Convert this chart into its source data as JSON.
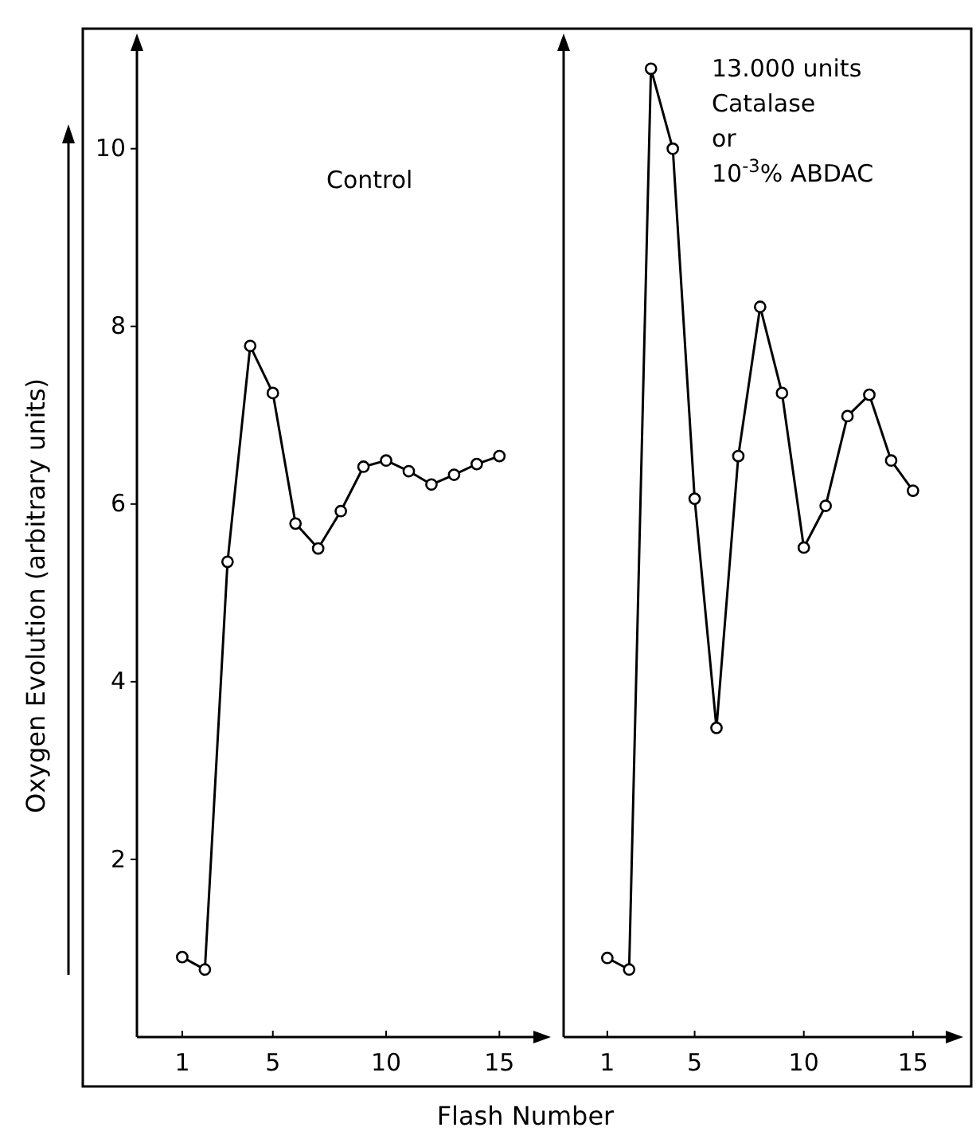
{
  "chart_data": [
    {
      "type": "line",
      "xlabel": "Flash Number",
      "ylabel": "Oxygen Evolution (arbitrary units)",
      "annotations": [
        "Control"
      ],
      "x": [
        1,
        2,
        3,
        4,
        5,
        6,
        7,
        8,
        9,
        10,
        11,
        12,
        13,
        14,
        15
      ],
      "series": [
        {
          "color": "#000000",
          "values": [
            0.9,
            0.76,
            5.35,
            7.78,
            7.25,
            5.78,
            5.5,
            5.92,
            6.42,
            6.49,
            6.37,
            6.22,
            6.33,
            6.45,
            6.54
          ]
        }
      ],
      "xlim": [
        -1,
        16.5
      ],
      "xticks": [
        1,
        5,
        10,
        15
      ],
      "ylim": [
        0,
        11.1
      ],
      "yticks": [
        2,
        4,
        6,
        8,
        10
      ],
      "marker": "circle",
      "line_style": "solid"
    },
    {
      "type": "line",
      "annotations": [
        "13.000  units\nCatalase\nor\n10$^{-3}$% ABDAC"
      ],
      "x": [
        1,
        2,
        3,
        4,
        5,
        6,
        7,
        8,
        9,
        10,
        11,
        12,
        13,
        14,
        15
      ],
      "series": [
        {
          "color": "#000000",
          "values": [
            0.89,
            0.76,
            10.9,
            10.0,
            6.06,
            3.48,
            6.54,
            8.22,
            7.25,
            5.51,
            5.98,
            6.99,
            7.23,
            6.49,
            6.15
          ]
        }
      ],
      "xlim": [
        -1,
        16.5
      ],
      "xticks": [
        1,
        5,
        10,
        15
      ],
      "ylim": [
        0,
        11.1
      ],
      "tick_labels": "x",
      "marker": "circle",
      "line_style": "solid"
    }
  ]
}
